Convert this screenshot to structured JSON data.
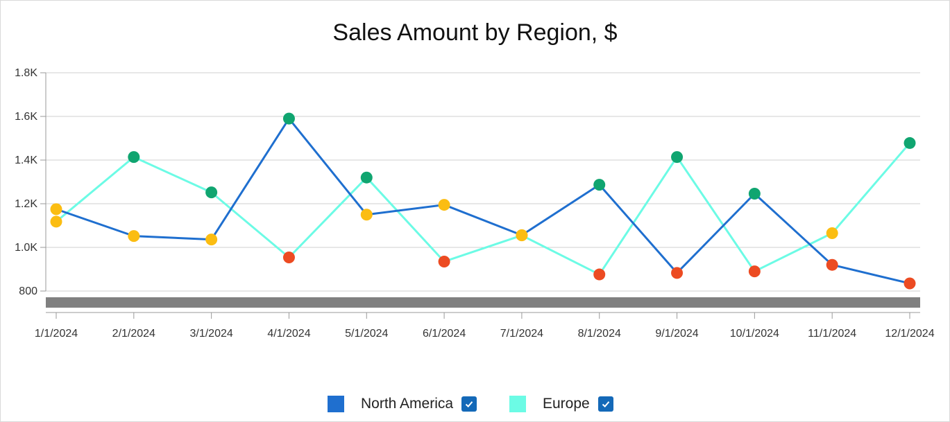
{
  "chart_data": {
    "type": "line",
    "title": "Sales Amount by Region, $",
    "categories": [
      "1/1/2024",
      "2/1/2024",
      "3/1/2024",
      "4/1/2024",
      "5/1/2024",
      "6/1/2024",
      "7/1/2024",
      "8/1/2024",
      "9/1/2024",
      "10/1/2024",
      "11/1/2024",
      "12/1/2024"
    ],
    "series": [
      {
        "name": "North America",
        "color": "#1f6fcf",
        "values": [
          1175,
          1052,
          1036,
          1590,
          1150,
          1195,
          1056,
          1287,
          883,
          1246,
          920,
          835
        ]
      },
      {
        "name": "Europe",
        "color": "#6cfbe5",
        "values": [
          1118,
          1414,
          1252,
          954,
          1320,
          935,
          1055,
          876,
          1414,
          890,
          1065,
          1478
        ]
      }
    ],
    "ylim": [
      800,
      1800
    ],
    "yticks": [
      800,
      1000,
      1200,
      1400,
      1600,
      1800
    ],
    "ytick_labels": [
      "800",
      "1.0K",
      "1.2K",
      "1.4K",
      "1.6K",
      "1.8K"
    ],
    "grid": true,
    "marker_colors": {
      "high": "#10a570",
      "mid": "#fbbd12",
      "low": "#ec4b22"
    },
    "legend_position": "bottom"
  },
  "legend": {
    "items": [
      {
        "label": "North America",
        "color": "#1f6fcf",
        "checked": true
      },
      {
        "label": "Europe",
        "color": "#6cfbe5",
        "checked": true
      }
    ]
  }
}
